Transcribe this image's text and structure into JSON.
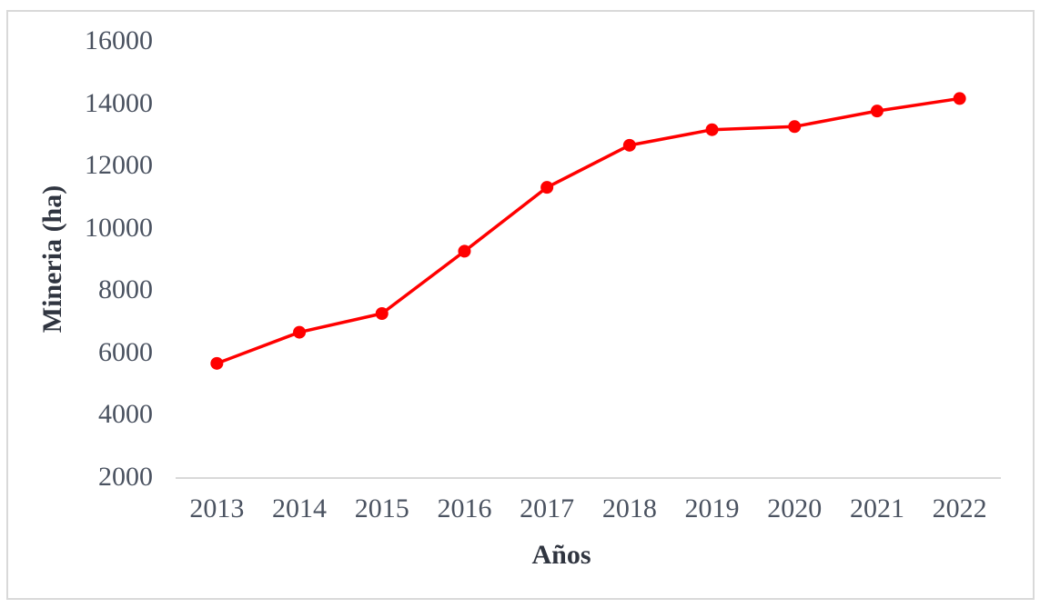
{
  "chart_data": {
    "type": "line",
    "title": "",
    "xlabel": "Años",
    "ylabel": "Mineria (ha)",
    "categories": [
      "2013",
      "2014",
      "2015",
      "2016",
      "2017",
      "2018",
      "2019",
      "2020",
      "2021",
      "2022"
    ],
    "series": [
      {
        "name": "Mineria (ha)",
        "color": "#FF0000",
        "marker": "circle",
        "values": [
          5650,
          6650,
          7250,
          9250,
          11300,
          12650,
          13150,
          13250,
          13750,
          14150
        ]
      }
    ],
    "ylim": [
      2000,
      16000
    ],
    "yticks": [
      2000,
      4000,
      6000,
      8000,
      10000,
      12000,
      14000,
      16000
    ],
    "grid": false,
    "legend_position": "none",
    "colors": {
      "axis_line": "#D9D9D9",
      "frame_border": "#D9D9D9",
      "tick_label": "#4A5260",
      "axis_title": "#303540",
      "background": "#FFFFFF"
    }
  }
}
